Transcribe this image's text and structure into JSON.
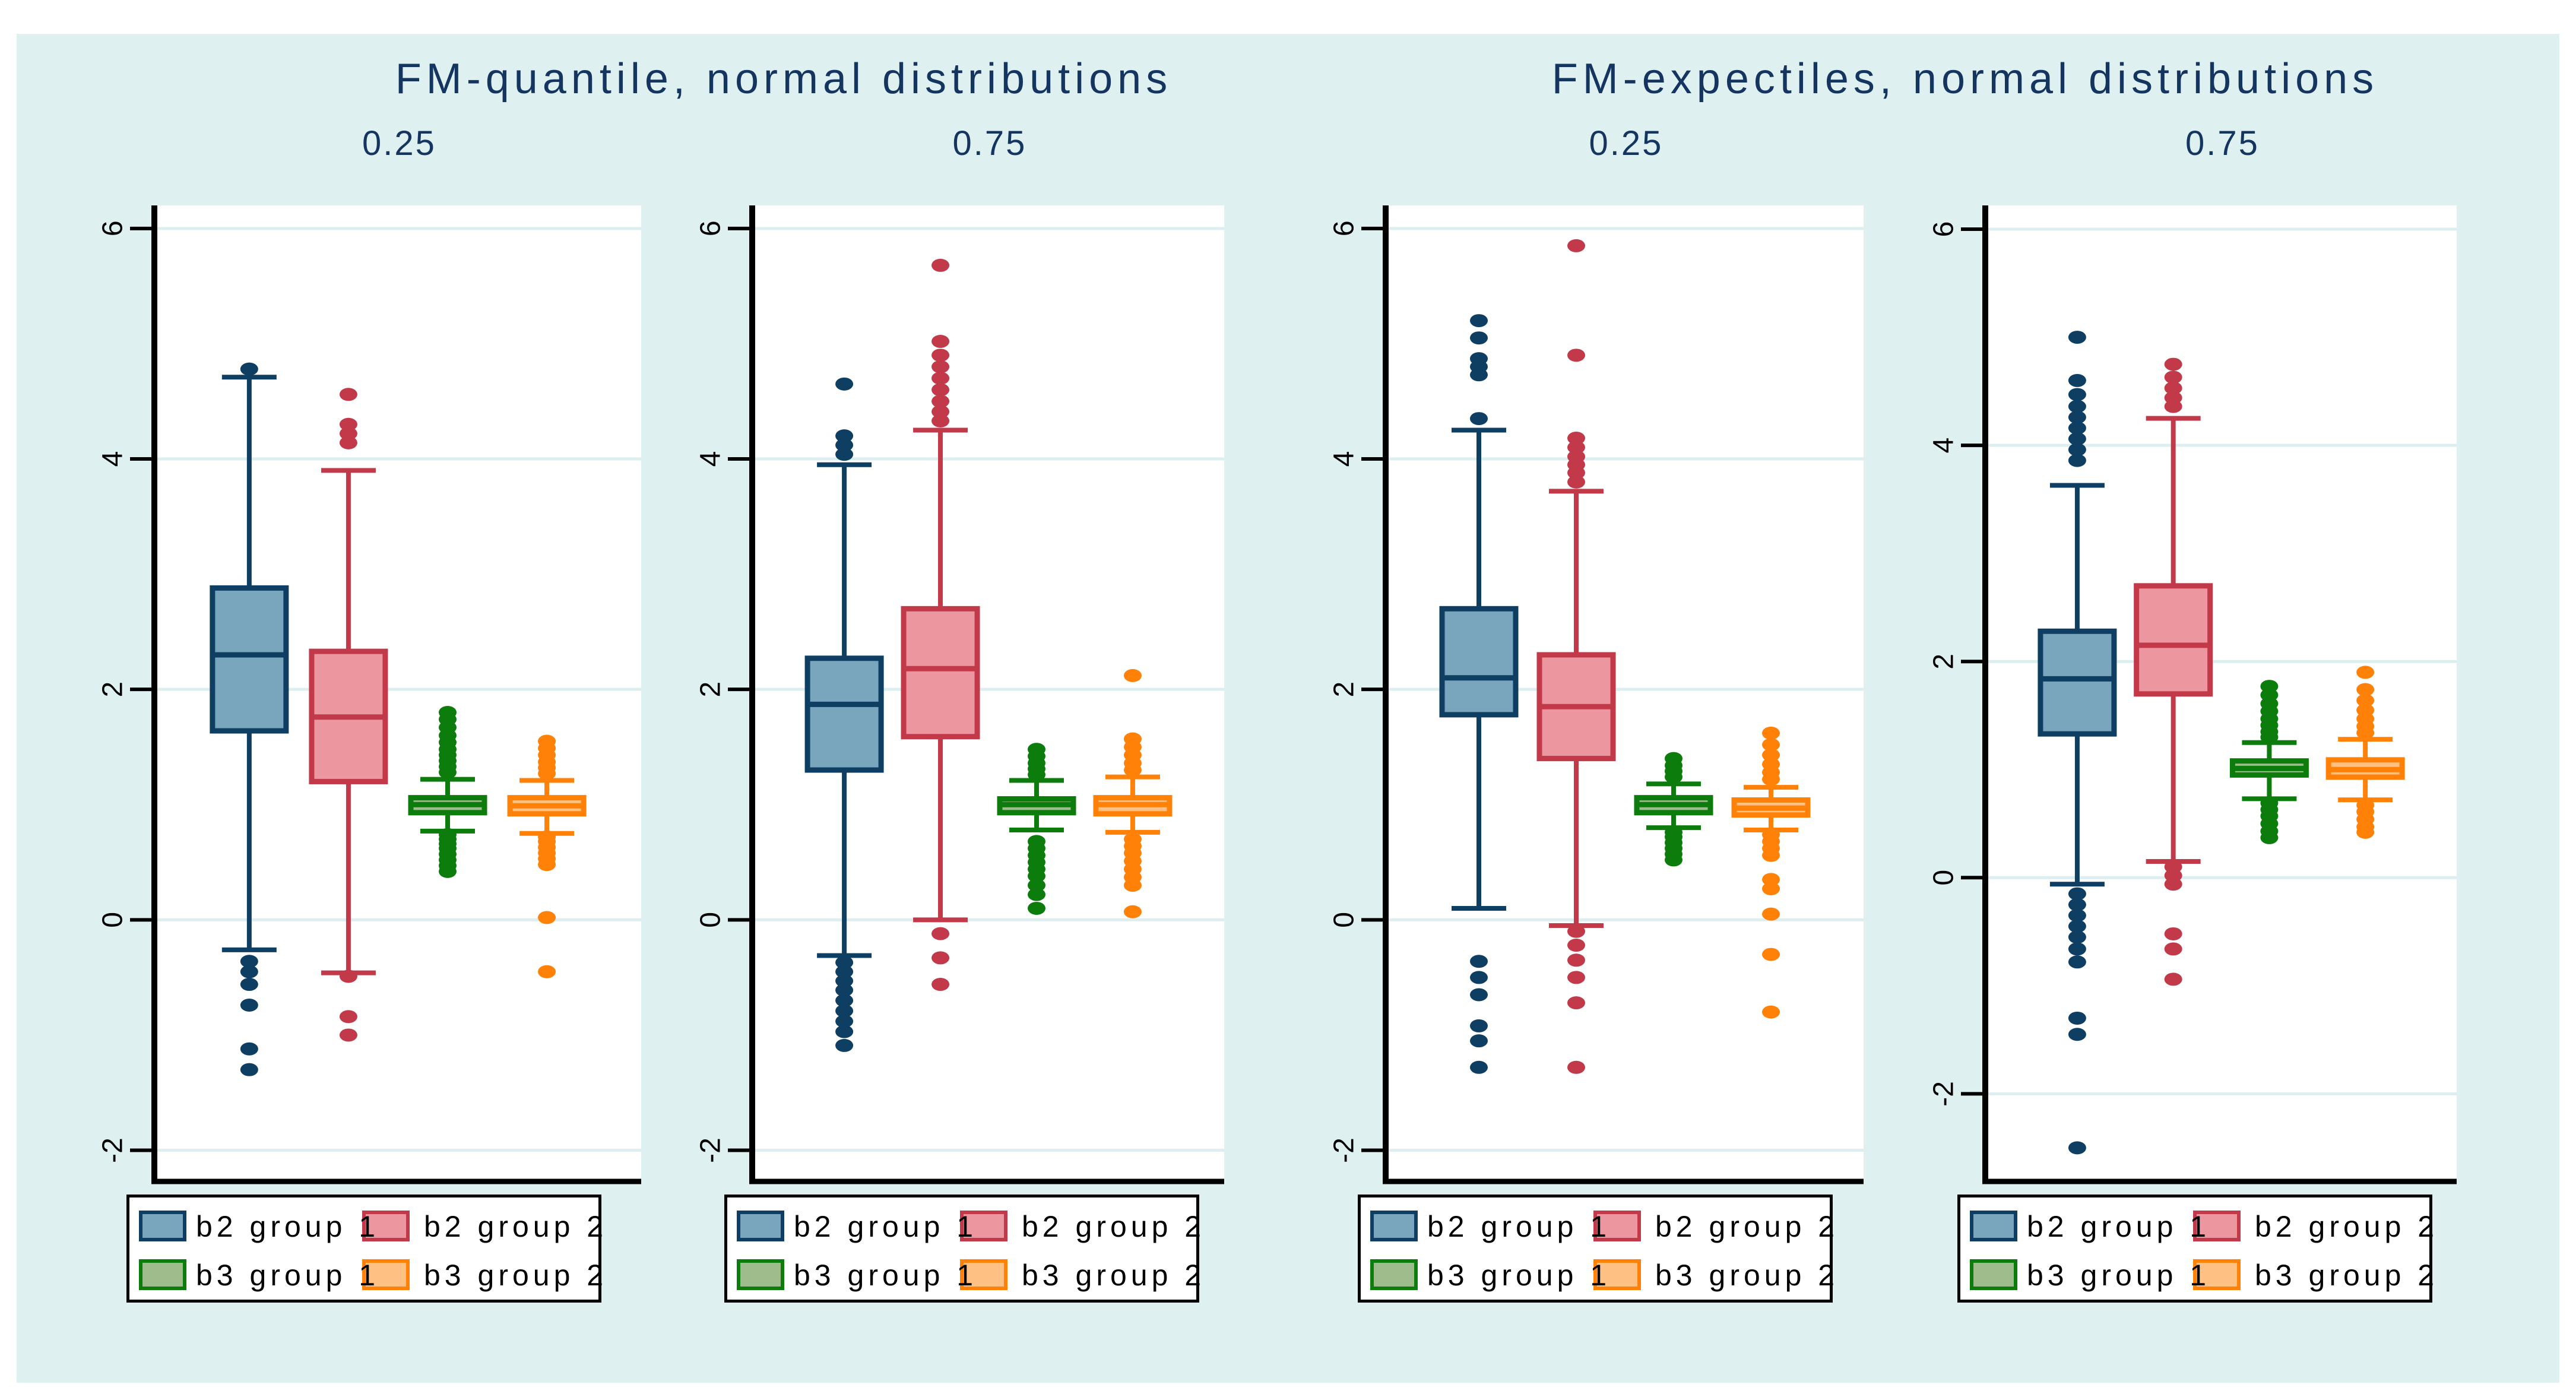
{
  "figure": {
    "background_color": "#dff0f1",
    "plot_background": "#ffffff",
    "gridline_color": "#ddeef0",
    "title_color": "#14355f"
  },
  "chart_data": {
    "type": "boxplot",
    "layout_hint": "2 column groups x 2 panels each, horizontal gridlines on, legend below each panel",
    "y_ticks": [
      6,
      4,
      2,
      0,
      -2
    ],
    "colors": {
      "blue": {
        "fill": "#7aa6bd",
        "stroke": "#0e3f63"
      },
      "red": {
        "fill": "#ec96a0",
        "stroke": "#c2394a"
      },
      "green": {
        "fill": "#9fbc8c",
        "stroke": "#0c7c0c"
      },
      "orange": {
        "fill": "#ffc183",
        "stroke": "#ff8108"
      }
    },
    "legend": [
      {
        "key": "blue",
        "label": "b2 group 1"
      },
      {
        "key": "red",
        "label": "b2 group 2"
      },
      {
        "key": "green",
        "label": "b3 group 1"
      },
      {
        "key": "orange",
        "label": "b3 group 2"
      }
    ],
    "groups": [
      {
        "title": "FM-quantile, normal distributions",
        "panels": [
          {
            "subtitle": "0.25",
            "ylim": [
              -2.26,
              6.2
            ],
            "boxes": [
              {
                "series": "b2 group 1",
                "color": "blue",
                "whislo": -0.26,
                "q1": 1.64,
                "med": 2.3,
                "q3": 2.88,
                "whishi": 4.71,
                "outliers_high": [
                  4.78
                ],
                "outliers_low": [
                  -0.36,
                  -0.45,
                  -0.56,
                  -0.74,
                  -1.12,
                  -1.3
                ]
              },
              {
                "series": "b2 group 2",
                "color": "red",
                "whislo": -0.46,
                "q1": 1.2,
                "med": 1.76,
                "q3": 2.33,
                "whishi": 3.9,
                "outliers_high": [
                  4.56,
                  4.3,
                  4.22,
                  4.14
                ],
                "outliers_low": [
                  -0.49,
                  -0.84,
                  -1.0
                ]
              },
              {
                "series": "b3 group 1",
                "color": "green",
                "whislo": 0.77,
                "q1": 0.93,
                "med": 1.0,
                "q3": 1.06,
                "whishi": 1.22,
                "outliers_high": [
                  1.28,
                  1.33,
                  1.38,
                  1.43,
                  1.48,
                  1.54,
                  1.6,
                  1.67,
                  1.74,
                  1.8
                ],
                "outliers_low": [
                  0.74,
                  0.7,
                  0.66,
                  0.62,
                  0.57,
                  0.52,
                  0.47,
                  0.42
                ]
              },
              {
                "series": "b3 group 2",
                "color": "orange",
                "whislo": 0.75,
                "q1": 0.92,
                "med": 0.99,
                "q3": 1.06,
                "whishi": 1.21,
                "outliers_high": [
                  1.27,
                  1.32,
                  1.37,
                  1.43,
                  1.49,
                  1.55
                ],
                "outliers_low": [
                  0.72,
                  0.68,
                  0.63,
                  0.58,
                  0.53,
                  0.48,
                  0.02,
                  -0.45
                ]
              }
            ]
          },
          {
            "subtitle": "0.75",
            "ylim": [
              -2.26,
              6.2
            ],
            "boxes": [
              {
                "series": "b2 group 1",
                "color": "blue",
                "whislo": -0.31,
                "q1": 1.3,
                "med": 1.87,
                "q3": 2.27,
                "whishi": 3.95,
                "outliers_high": [
                  4.65,
                  4.2,
                  4.12,
                  4.04
                ],
                "outliers_low": [
                  -0.37,
                  -0.45,
                  -0.53,
                  -0.61,
                  -0.7,
                  -0.79,
                  -0.88,
                  -0.97,
                  -1.09
                ]
              },
              {
                "series": "b2 group 2",
                "color": "red",
                "whislo": 0.0,
                "q1": 1.59,
                "med": 2.18,
                "q3": 2.7,
                "whishi": 4.25,
                "outliers_high": [
                  5.68,
                  5.02,
                  4.9,
                  4.8,
                  4.7,
                  4.6,
                  4.5,
                  4.41,
                  4.33
                ],
                "outliers_low": [
                  -0.12,
                  -0.33,
                  -0.56
                ]
              },
              {
                "series": "b3 group 1",
                "color": "green",
                "whislo": 0.78,
                "q1": 0.93,
                "med": 1.0,
                "q3": 1.05,
                "whishi": 1.21,
                "outliers_high": [
                  1.26,
                  1.31,
                  1.36,
                  1.42,
                  1.48
                ],
                "outliers_low": [
                  0.68,
                  0.62,
                  0.56,
                  0.5,
                  0.44,
                  0.38,
                  0.3,
                  0.22,
                  0.1
                ]
              },
              {
                "series": "b3 group 2",
                "color": "orange",
                "whislo": 0.76,
                "q1": 0.92,
                "med": 1.0,
                "q3": 1.06,
                "whishi": 1.24,
                "outliers_high": [
                  2.12,
                  1.57,
                  1.5,
                  1.43,
                  1.36,
                  1.3
                ],
                "outliers_low": [
                  0.7,
                  0.64,
                  0.58,
                  0.51,
                  0.44,
                  0.37,
                  0.3,
                  0.07
                ]
              }
            ]
          }
        ]
      },
      {
        "title": "FM-expectiles, normal distributions",
        "panels": [
          {
            "subtitle": "0.25",
            "ylim": [
              -2.26,
              6.2
            ],
            "boxes": [
              {
                "series": "b2 group 1",
                "color": "blue",
                "whislo": 0.1,
                "q1": 1.78,
                "med": 2.1,
                "q3": 2.7,
                "whishi": 4.25,
                "outliers_high": [
                  5.2,
                  5.05,
                  4.87,
                  4.8,
                  4.73,
                  4.35
                ],
                "outliers_low": [
                  -0.36,
                  -0.5,
                  -0.65,
                  -0.92,
                  -1.05,
                  -1.28
                ]
              },
              {
                "series": "b2 group 2",
                "color": "red",
                "whislo": -0.05,
                "q1": 1.4,
                "med": 1.85,
                "q3": 2.3,
                "whishi": 3.72,
                "outliers_high": [
                  5.85,
                  4.9,
                  4.18,
                  4.1,
                  4.02,
                  3.95,
                  3.88,
                  3.8
                ],
                "outliers_low": [
                  -0.1,
                  -0.22,
                  -0.35,
                  -0.5,
                  -0.72,
                  -1.28
                ]
              },
              {
                "series": "b3 group 1",
                "color": "green",
                "whislo": 0.8,
                "q1": 0.93,
                "med": 1.0,
                "q3": 1.06,
                "whishi": 1.18,
                "outliers_high": [
                  1.24,
                  1.29,
                  1.34,
                  1.4
                ],
                "outliers_low": [
                  0.76,
                  0.72,
                  0.67,
                  0.62,
                  0.57,
                  0.52
                ]
              },
              {
                "series": "b3 group 2",
                "color": "orange",
                "whislo": 0.78,
                "q1": 0.91,
                "med": 0.97,
                "q3": 1.04,
                "whishi": 1.15,
                "outliers_high": [
                  1.22,
                  1.28,
                  1.35,
                  1.43,
                  1.52,
                  1.62
                ],
                "outliers_low": [
                  0.74,
                  0.68,
                  0.62,
                  0.56,
                  0.35,
                  0.27,
                  0.05,
                  -0.3,
                  -0.8
                ]
              }
            ]
          },
          {
            "subtitle": "0.75",
            "ylim": [
              -2.8,
              6.22
            ],
            "boxes": [
              {
                "series": "b2 group 1",
                "color": "blue",
                "whislo": -0.06,
                "q1": 1.33,
                "med": 1.84,
                "q3": 2.28,
                "whishi": 3.63,
                "outliers_high": [
                  5.0,
                  4.6,
                  4.47,
                  4.36,
                  4.26,
                  4.16,
                  4.06,
                  3.96,
                  3.86
                ],
                "outliers_low": [
                  -0.15,
                  -0.25,
                  -0.35,
                  -0.45,
                  -0.55,
                  -0.66,
                  -0.78,
                  -1.3,
                  -1.45,
                  -2.5
                ]
              },
              {
                "series": "b2 group 2",
                "color": "red",
                "whislo": 0.15,
                "q1": 1.7,
                "med": 2.15,
                "q3": 2.7,
                "whishi": 4.25,
                "outliers_high": [
                  4.75,
                  4.63,
                  4.53,
                  4.44,
                  4.36
                ],
                "outliers_low": [
                  0.1,
                  0.02,
                  -0.06,
                  -0.52,
                  -0.66,
                  -0.94
                ]
              },
              {
                "series": "b3 group 1",
                "color": "green",
                "whislo": 0.73,
                "q1": 0.95,
                "med": 1.01,
                "q3": 1.08,
                "whishi": 1.25,
                "outliers_high": [
                  1.3,
                  1.35,
                  1.41,
                  1.47,
                  1.54,
                  1.61,
                  1.69,
                  1.77
                ],
                "outliers_low": [
                  0.69,
                  0.63,
                  0.57,
                  0.5,
                  0.43,
                  0.37
                ]
              },
              {
                "series": "b3 group 2",
                "color": "orange",
                "whislo": 0.72,
                "q1": 0.93,
                "med": 1.0,
                "q3": 1.09,
                "whishi": 1.28,
                "outliers_high": [
                  1.9,
                  1.74,
                  1.64,
                  1.55,
                  1.47,
                  1.4,
                  1.34
                ],
                "outliers_low": [
                  0.67,
                  0.61,
                  0.54,
                  0.47,
                  0.42
                ]
              }
            ]
          }
        ]
      }
    ]
  }
}
